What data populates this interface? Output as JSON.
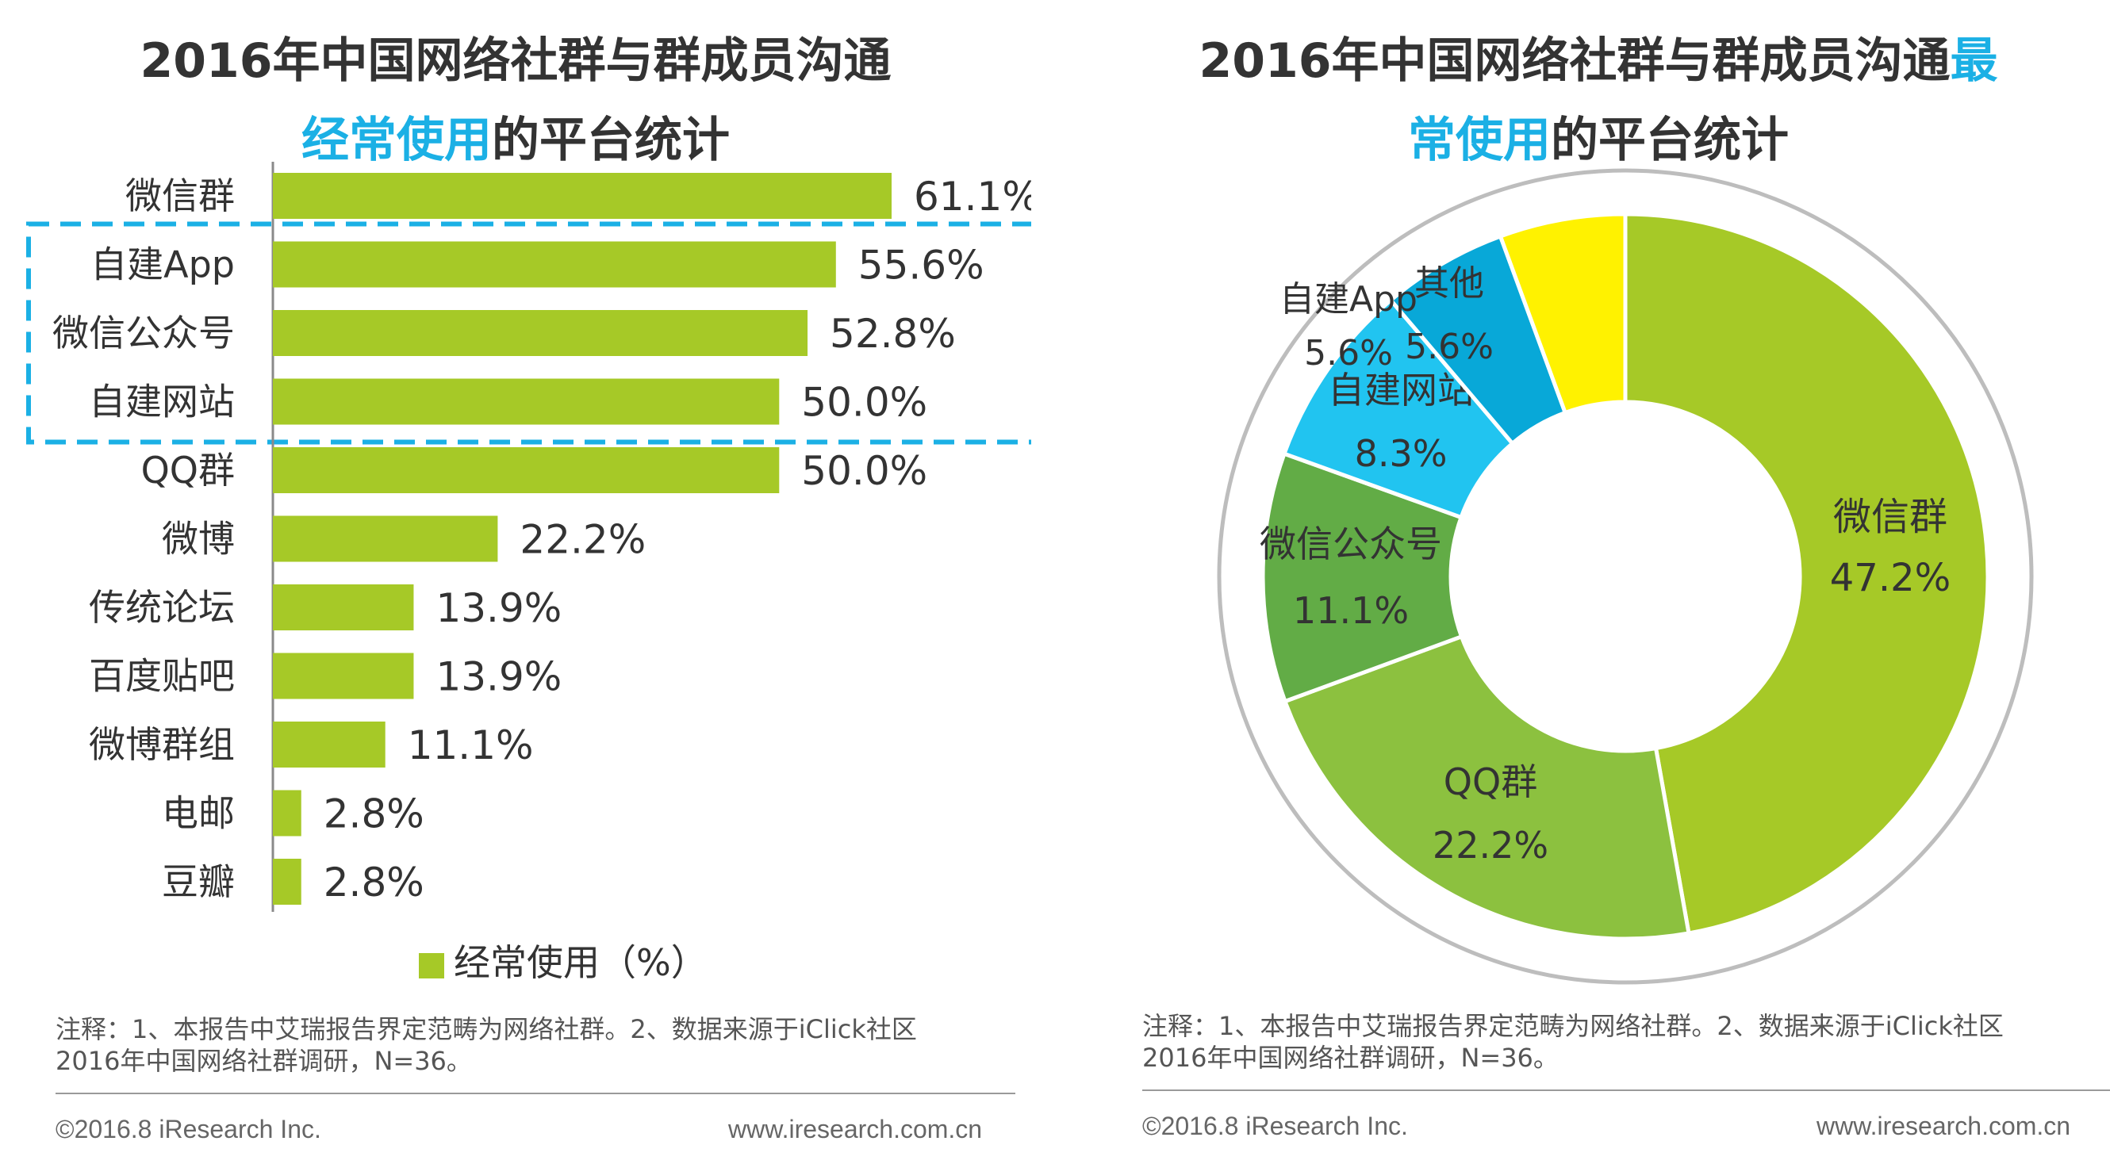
{
  "left": {
    "title_line1": "2016年中国网络社群与群成员沟通",
    "title_line2_highlight": "经常使用",
    "title_line2_rest": "的平台统计",
    "legend_label": "经常使用（%）",
    "note_line1": "注释：1、本报告中艾瑞报告界定范畴为网络社群。2、数据来源于iClick社区",
    "note_line2": "2016年中国网络社群调研，N=36。",
    "footer_copyright": "©2016.8 iResearch Inc.",
    "footer_url": "www.iresearch.com.cn"
  },
  "right": {
    "title_line1_main": "2016年中国网络社群与群成员沟通",
    "title_line1_highlight": "最",
    "title_line2_highlight": "常使用",
    "title_line2_rest": "的平台统计",
    "note_line1": "注释：1、本报告中艾瑞报告界定范畴为网络社群。2、数据来源于iClick社区",
    "note_line2": "2016年中国网络社群调研，N=36。",
    "footer_copyright": "©2016.8 iResearch Inc.",
    "footer_url": "www.iresearch.com.cn"
  },
  "colors": {
    "bar": "#a6c927",
    "highlight": "#1bb0e5",
    "dash_box": "#1bb0e5"
  },
  "chart_data": [
    {
      "type": "bar",
      "orientation": "horizontal",
      "title": "2016年中国网络社群与群成员沟通经常使用的平台统计",
      "categories": [
        "微信群",
        "自建App",
        "微信公众号",
        "自建网站",
        "QQ群",
        "微博",
        "传统论坛",
        "百度贴吧",
        "微博群组",
        "电邮",
        "豆瓣"
      ],
      "values": [
        61.1,
        55.6,
        52.8,
        50.0,
        50.0,
        22.2,
        13.9,
        13.9,
        11.1,
        2.8,
        2.8
      ],
      "value_labels": [
        "61.1%",
        "55.6%",
        "52.8%",
        "50.0%",
        "50.0%",
        "22.2%",
        "13.9%",
        "13.9%",
        "11.1%",
        "2.8%",
        "2.8%"
      ],
      "series_name": "经常使用（%）",
      "highlighted_categories": [
        "自建App",
        "微信公众号",
        "自建网站"
      ],
      "xlim": [
        0,
        100
      ],
      "grid": false
    },
    {
      "type": "pie",
      "style": "donut",
      "title": "2016年中国网络社群与群成员沟通最常使用的平台统计",
      "slices": [
        {
          "label": "微信群",
          "value": 47.2,
          "value_label": "47.2%",
          "color": "#a6c927"
        },
        {
          "label": "QQ群",
          "value": 22.2,
          "value_label": "22.2%",
          "color": "#8cc13f"
        },
        {
          "label": "微信公众号",
          "value": 11.1,
          "value_label": "11.1%",
          "color": "#62ac46"
        },
        {
          "label": "自建网站",
          "value": 8.3,
          "value_label": "8.3%",
          "color": "#21c4f0"
        },
        {
          "label": "自建App",
          "value": 5.6,
          "value_label": "5.6%",
          "color": "#08a8d8"
        },
        {
          "label": "其他",
          "value": 5.6,
          "value_label": "5.6%",
          "color": "#fff200"
        }
      ]
    }
  ]
}
